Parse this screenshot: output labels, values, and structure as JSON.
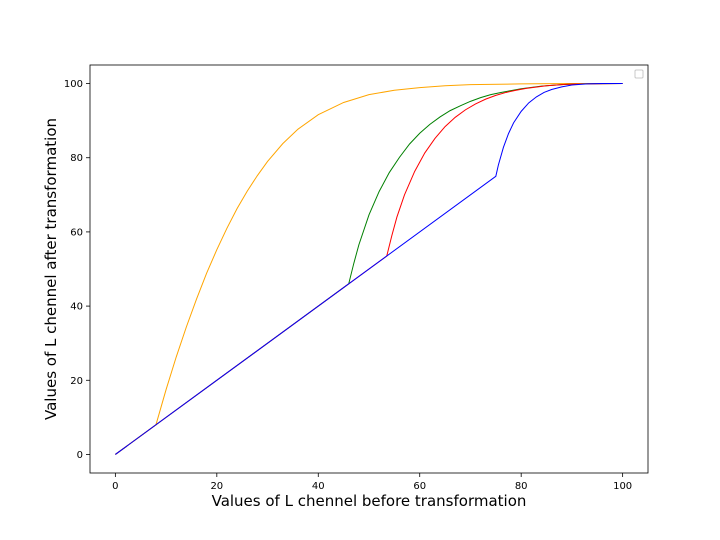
{
  "chart_data": {
    "type": "line",
    "title": "",
    "xlabel": "Values of L chennel before transformation",
    "ylabel": "Values of L chennel after transformation",
    "xlim": [
      -5,
      105
    ],
    "ylim": [
      -5,
      105
    ],
    "xticks": [
      0,
      20,
      40,
      60,
      80,
      100
    ],
    "yticks": [
      0,
      20,
      40,
      60,
      80,
      100
    ],
    "grid": false,
    "legend": {
      "placement": "upper right",
      "entries": []
    },
    "series": [
      {
        "color": "#ffa500",
        "x": [
          0,
          8,
          10,
          12,
          14,
          16,
          18,
          20,
          22,
          24,
          26,
          28,
          30,
          33,
          36,
          40,
          45,
          50,
          55,
          60,
          65,
          70,
          80,
          90,
          100
        ],
        "y": [
          0,
          8,
          17.5,
          26.3,
          34.4,
          41.9,
          48.9,
          55.2,
          61.0,
          66.3,
          71.0,
          75.2,
          79.0,
          83.8,
          87.7,
          91.6,
          94.9,
          97.0,
          98.2,
          98.9,
          99.4,
          99.7,
          99.9,
          100,
          100
        ]
      },
      {
        "color": "#008000",
        "x": [
          0,
          46,
          47,
          48,
          50,
          52,
          54,
          56,
          58,
          60,
          62,
          64,
          66,
          68,
          70,
          72,
          74,
          76,
          78,
          80,
          84,
          88,
          92,
          100
        ],
        "y": [
          0,
          46,
          51.5,
          56.5,
          64.6,
          70.9,
          76.0,
          80.1,
          83.7,
          86.6,
          89.0,
          91.0,
          92.7,
          94.0,
          95.2,
          96.2,
          97.0,
          97.6,
          98.1,
          98.6,
          99.3,
          99.7,
          99.9,
          100
        ]
      },
      {
        "color": "#ff0000",
        "x": [
          0,
          53.5,
          54.5,
          55.5,
          57,
          59,
          61,
          63,
          65,
          67,
          69,
          71,
          73,
          75,
          77,
          79,
          81,
          85,
          89,
          93,
          100
        ],
        "y": [
          0,
          53.5,
          59,
          64,
          70,
          76.3,
          81.3,
          85.2,
          88.4,
          90.9,
          92.9,
          94.5,
          95.8,
          96.8,
          97.6,
          98.2,
          98.7,
          99.4,
          99.8,
          99.9,
          100
        ]
      },
      {
        "color": "#0000ff",
        "x": [
          0,
          75,
          75.5,
          76.5,
          77.5,
          78.5,
          80,
          81.5,
          83,
          84.5,
          86,
          88,
          90,
          93,
          96,
          100
        ],
        "y": [
          0,
          75,
          78,
          82.8,
          86.5,
          89.4,
          92.5,
          94.8,
          96.4,
          97.6,
          98.4,
          99.1,
          99.6,
          99.9,
          100,
          100
        ]
      }
    ],
    "overlap_note_drawn": false
  }
}
